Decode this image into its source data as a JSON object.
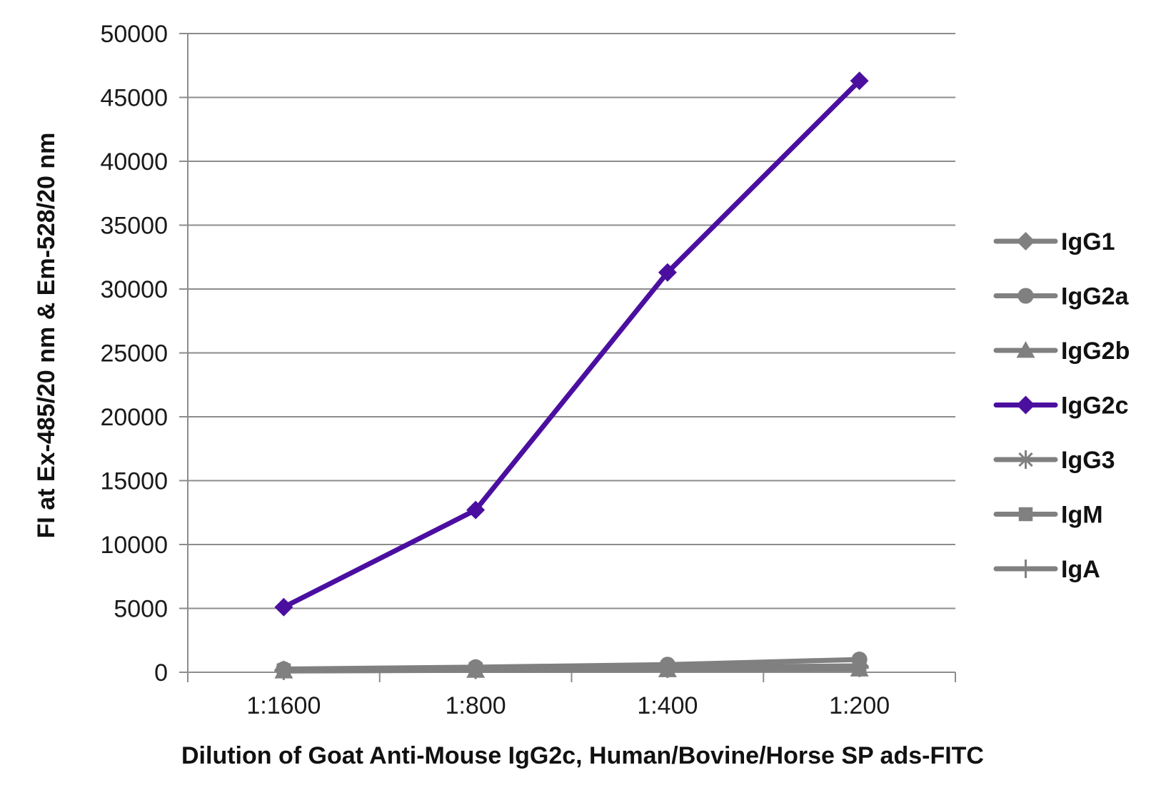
{
  "chart_data": {
    "type": "line",
    "title": "",
    "xlabel": "Dilution of Goat Anti-Mouse IgG2c, Human/Bovine/Horse SP ads-FITC",
    "ylabel": "FI at Ex-485/20 nm & Em-528/20 nm",
    "categories": [
      "1:1600",
      "1:800",
      "1:400",
      "1:200"
    ],
    "ylim": [
      0,
      50000
    ],
    "yticks": [
      0,
      5000,
      10000,
      15000,
      20000,
      25000,
      30000,
      35000,
      40000,
      45000,
      50000
    ],
    "grid": "horizontal",
    "legend_position": "right",
    "series": [
      {
        "name": "IgG1",
        "marker": "diamond",
        "color": "#808080",
        "values": [
          200,
          300,
          400,
          500
        ]
      },
      {
        "name": "IgG2a",
        "marker": "circle",
        "color": "#808080",
        "values": [
          250,
          400,
          600,
          1000
        ]
      },
      {
        "name": "IgG2b",
        "marker": "triangle",
        "color": "#808080",
        "values": [
          100,
          150,
          200,
          250
        ]
      },
      {
        "name": "IgG2c",
        "marker": "diamond",
        "color": "#4B0FA0",
        "values": [
          5100,
          12700,
          31300,
          46300
        ]
      },
      {
        "name": "IgG3",
        "marker": "star",
        "color": "#808080",
        "values": [
          150,
          200,
          300,
          400
        ]
      },
      {
        "name": "IgM",
        "marker": "square",
        "color": "#808080",
        "values": [
          150,
          250,
          350,
          450
        ]
      },
      {
        "name": "IgA",
        "marker": "plus",
        "color": "#808080",
        "values": [
          120,
          200,
          280,
          350
        ]
      }
    ]
  }
}
